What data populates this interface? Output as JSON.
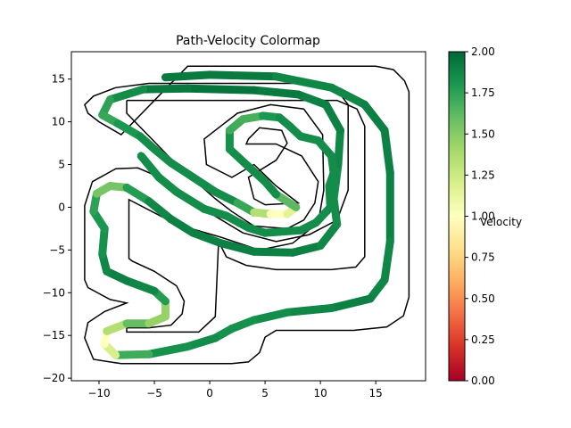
{
  "chart_data": {
    "type": "line",
    "title": "Path-Velocity Colormap",
    "xlim": [
      -12.5,
      19.5
    ],
    "ylim": [
      -20.3,
      18.2
    ],
    "xticks": [
      -10,
      -5,
      0,
      5,
      10,
      15
    ],
    "yticks": [
      -20,
      -15,
      -10,
      -5,
      0,
      5,
      10,
      15
    ],
    "track_outer_boundary": [
      [
        -2,
        16.5
      ],
      [
        15,
        16.5
      ],
      [
        16.6,
        16.1
      ],
      [
        17.6,
        14.8
      ],
      [
        18,
        13.5
      ],
      [
        18,
        -10.5
      ],
      [
        17.5,
        -12.7
      ],
      [
        16,
        -14
      ],
      [
        13,
        -14.4
      ],
      [
        6,
        -14.4
      ],
      [
        5,
        -15.2
      ],
      [
        4.5,
        -17
      ],
      [
        3.5,
        -18.1
      ],
      [
        2,
        -18.3
      ],
      [
        -8,
        -18.3
      ],
      [
        -10.5,
        -17.8
      ],
      [
        -11.3,
        -15.3
      ],
      [
        -11,
        -13.5
      ],
      [
        -9.5,
        -12.2
      ],
      [
        -7.5,
        -11.2
      ],
      [
        -9,
        -10.8
      ],
      [
        -11,
        -9.4
      ],
      [
        -11.3,
        -8.5
      ],
      [
        -11.3,
        0.2
      ],
      [
        -10.6,
        3
      ],
      [
        -8.5,
        4.5
      ],
      [
        -6.5,
        4.6
      ],
      [
        -4.5,
        3.5
      ],
      [
        -1.5,
        0.5
      ],
      [
        3,
        -3
      ],
      [
        6,
        -4
      ],
      [
        9,
        -3.2
      ],
      [
        11.5,
        -1.5
      ],
      [
        12.5,
        2
      ],
      [
        12.5,
        12
      ],
      [
        11.5,
        13.7
      ],
      [
        9.5,
        14.5
      ],
      [
        -5.5,
        14.5
      ],
      [
        -8.5,
        14
      ],
      [
        -10.5,
        13
      ],
      [
        -11.3,
        12
      ],
      [
        -11,
        11
      ],
      [
        -10,
        10
      ],
      [
        -8,
        8.5
      ]
    ],
    "track_inner_boundary": [
      [
        -7.5,
        12.5
      ],
      [
        11.5,
        12.5
      ],
      [
        13.3,
        11.5
      ],
      [
        14,
        9.5
      ],
      [
        14,
        -5.8
      ],
      [
        13.2,
        -7
      ],
      [
        11,
        -7.3
      ],
      [
        6,
        -7.3
      ],
      [
        3.3,
        -6.8
      ],
      [
        1.5,
        -5.8
      ],
      [
        0.8,
        -4
      ],
      [
        0.5,
        -12.8
      ],
      [
        -1,
        -14.6
      ],
      [
        -7.5,
        -14.6
      ],
      [
        -7.5,
        -14.1
      ],
      [
        -5.5,
        -14.1
      ],
      [
        -3.5,
        -13.8
      ],
      [
        -2.5,
        -12.5
      ],
      [
        -2.3,
        -11
      ],
      [
        -3,
        -9.2
      ],
      [
        -5,
        -7.5
      ],
      [
        -7,
        -6.3
      ],
      [
        -7.3,
        -6
      ],
      [
        -7.3,
        0.9
      ],
      [
        -3,
        -2
      ],
      [
        1,
        -3.5
      ],
      [
        4.5,
        -5
      ],
      [
        7.5,
        -4.2
      ],
      [
        9.8,
        -1.8
      ],
      [
        10.3,
        2
      ],
      [
        10.2,
        8.5
      ],
      [
        8.5,
        11.5
      ],
      [
        5.5,
        12
      ],
      [
        2.5,
        11
      ],
      [
        -0.5,
        8
      ],
      [
        -0.3,
        5
      ],
      [
        2,
        3.5
      ],
      [
        4,
        5
      ],
      [
        6,
        2.5
      ],
      [
        8,
        0.5
      ],
      [
        5,
        0.3
      ],
      [
        4,
        1
      ],
      [
        3.5,
        3.5
      ],
      [
        6,
        5.5
      ],
      [
        7,
        7.5
      ],
      [
        6.5,
        9
      ],
      [
        4.5,
        9.3
      ],
      [
        3.5,
        8
      ],
      [
        3.3,
        7.4
      ],
      [
        6,
        7.4
      ],
      [
        8.3,
        6
      ],
      [
        9.8,
        3
      ],
      [
        9.5,
        0.5
      ],
      [
        8.5,
        -1.5
      ],
      [
        7,
        -2.5
      ],
      [
        4,
        -2.2
      ],
      [
        2,
        -0.5
      ],
      [
        0.5,
        1
      ],
      [
        -3,
        5
      ],
      [
        -7.5,
        11
      ],
      [
        -7.5,
        12.5
      ]
    ],
    "path": [
      [
        -4,
        15.2
      ],
      [
        0,
        15.5
      ],
      [
        6,
        15.3
      ],
      [
        11,
        14
      ],
      [
        14,
        12
      ],
      [
        15.8,
        9
      ],
      [
        16.3,
        4
      ],
      [
        16.3,
        -4
      ],
      [
        15.8,
        -8.5
      ],
      [
        14.5,
        -10.7
      ],
      [
        11,
        -11.8
      ],
      [
        7,
        -12.3
      ],
      [
        4,
        -13.2
      ],
      [
        2,
        -14.2
      ],
      [
        0.5,
        -15.3
      ],
      [
        -2,
        -16.3
      ],
      [
        -5.5,
        -17.2
      ],
      [
        -8.5,
        -17.3
      ],
      [
        -9.5,
        -16
      ],
      [
        -9.3,
        -14.5
      ],
      [
        -7.5,
        -13.6
      ],
      [
        -5.5,
        -13.6
      ],
      [
        -4,
        -12.8
      ],
      [
        -4,
        -11
      ],
      [
        -5,
        -9.8
      ],
      [
        -7.5,
        -8.6
      ],
      [
        -9.3,
        -7.5
      ],
      [
        -9.7,
        -5.5
      ],
      [
        -9.5,
        -2.5
      ],
      [
        -10.5,
        -0.5
      ],
      [
        -10.2,
        1.6
      ],
      [
        -9,
        2.5
      ],
      [
        -7.5,
        2.3
      ],
      [
        -5.5,
        0.7
      ],
      [
        -3.5,
        -1.4
      ],
      [
        -1.5,
        -3
      ],
      [
        1,
        -4.2
      ],
      [
        4,
        -5.2
      ],
      [
        7.5,
        -5.3
      ],
      [
        10,
        -4.5
      ],
      [
        11.5,
        -2
      ],
      [
        11.2,
        1
      ],
      [
        11.6,
        5
      ],
      [
        11.8,
        9
      ],
      [
        10.5,
        12
      ],
      [
        8,
        13.2
      ],
      [
        4,
        13.7
      ],
      [
        -2,
        13.9
      ],
      [
        -6,
        13.8
      ],
      [
        -9,
        12.6
      ],
      [
        -9.7,
        10.8
      ],
      [
        -8.3,
        9.8
      ],
      [
        -6.3,
        8.3
      ],
      [
        -5,
        6.8
      ],
      [
        -3.5,
        5.2
      ],
      [
        -1.5,
        3.5
      ],
      [
        0.5,
        1.8
      ],
      [
        2.5,
        0.5
      ],
      [
        4,
        -0.6
      ],
      [
        5.5,
        -0.8
      ],
      [
        7,
        -0.8
      ],
      [
        7.8,
        0
      ],
      [
        6,
        1.5
      ],
      [
        5,
        3
      ],
      [
        3.3,
        5
      ],
      [
        1.8,
        6.8
      ],
      [
        1.8,
        9
      ],
      [
        3,
        10.3
      ],
      [
        4.8,
        10.7
      ],
      [
        6.3,
        10.5
      ],
      [
        7.3,
        9.4
      ],
      [
        8.2,
        8.3
      ],
      [
        9.8,
        7.8
      ],
      [
        11,
        6
      ],
      [
        11.2,
        4
      ],
      [
        10.8,
        2.5
      ],
      [
        10.9,
        0
      ],
      [
        9.6,
        -1.8
      ],
      [
        8.2,
        -2.7
      ],
      [
        5,
        -3
      ],
      [
        3.5,
        -2.4
      ],
      [
        1.5,
        -1
      ],
      [
        -0.5,
        -0.2
      ],
      [
        -3,
        1.8
      ],
      [
        -4.6,
        3.5
      ],
      [
        -6.2,
        6
      ]
    ],
    "velocity": [
      1.9,
      1.95,
      1.9,
      1.85,
      1.9,
      1.9,
      1.9,
      1.9,
      1.85,
      1.9,
      1.9,
      1.85,
      1.85,
      1.8,
      1.85,
      1.85,
      1.8,
      1.6,
      0.8,
      1.2,
      1.5,
      1.7,
      1.2,
      1.7,
      1.85,
      1.9,
      1.9,
      1.85,
      1.8,
      1.8,
      1.7,
      1.4,
      1.7,
      1.85,
      1.9,
      1.9,
      1.9,
      1.9,
      1.9,
      1.9,
      1.85,
      1.85,
      1.85,
      1.9,
      1.9,
      1.9,
      1.95,
      1.95,
      1.9,
      1.8,
      1.7,
      1.75,
      1.85,
      1.85,
      1.85,
      1.85,
      1.85,
      1.85,
      1.6,
      1.1,
      0.9,
      1.4,
      1.85,
      1.85,
      1.85,
      1.85,
      1.8,
      1.6,
      1.75,
      1.85,
      1.85,
      1.85,
      1.85,
      1.85,
      1.85,
      1.85,
      1.85,
      1.85,
      1.85,
      1.85,
      1.85,
      1.85,
      1.85,
      1.85,
      1.85,
      1.85
    ],
    "colorbar": {
      "label": "Velocity",
      "range": [
        0,
        2
      ],
      "ticks": [
        "0.00",
        "0.25",
        "0.50",
        "0.75",
        "1.00",
        "1.25",
        "1.50",
        "1.75",
        "2.00"
      ],
      "colormap": "RdYlGn"
    },
    "grid": false
  }
}
